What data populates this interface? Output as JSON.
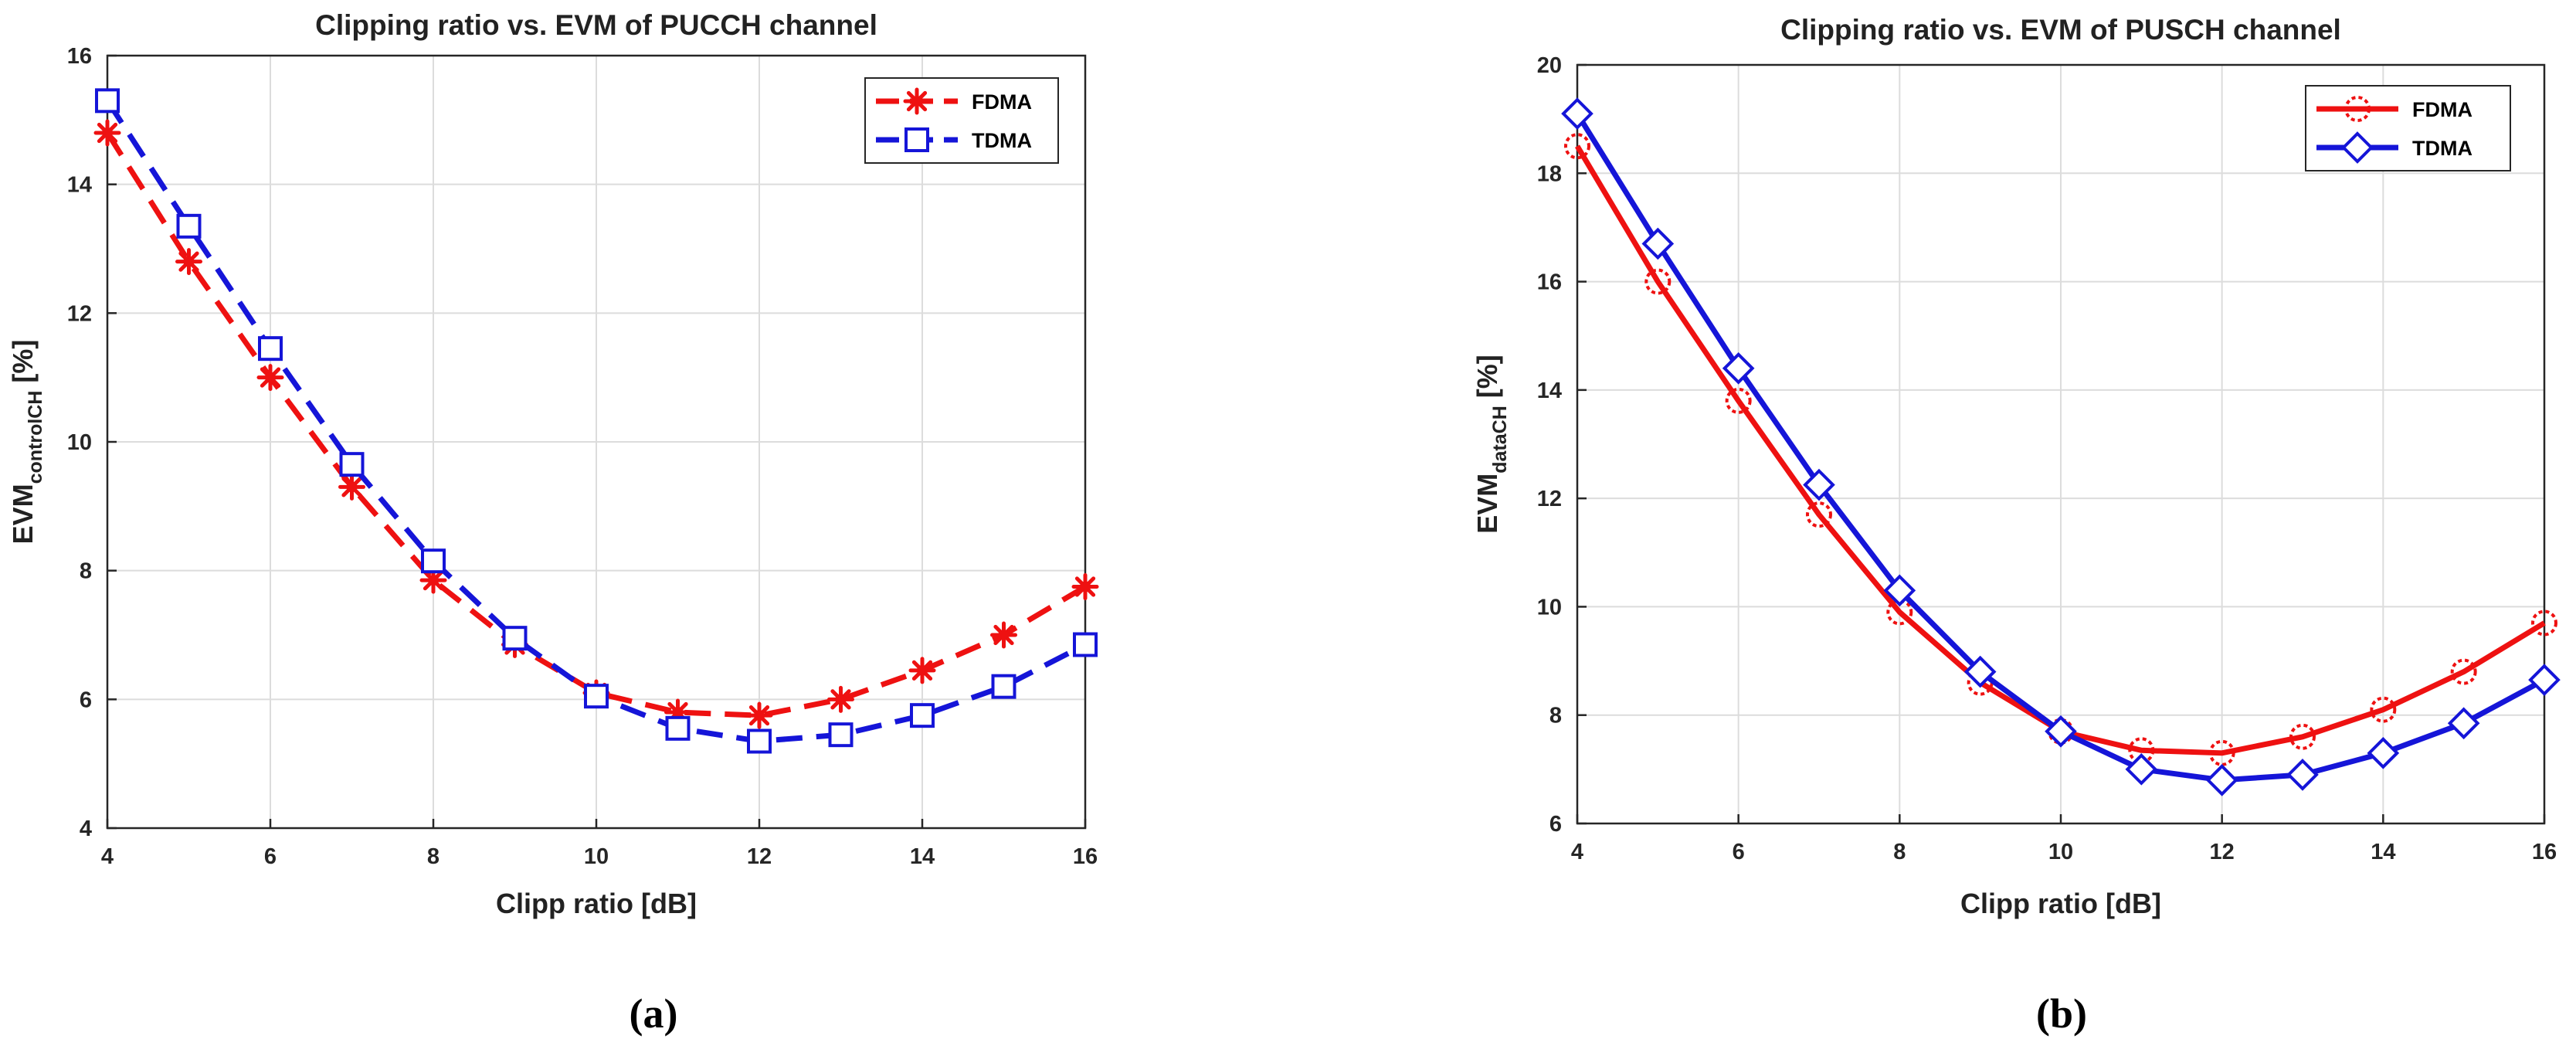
{
  "chart_data": [
    {
      "type": "line",
      "panel_label": "(a)",
      "title": "Clipping ratio vs. EVM of PUCCH channel",
      "xlabel": "Clipp ratio [dB]",
      "ylabel": {
        "main": "EVM",
        "sub": "controlCH",
        "unit": "[%]"
      },
      "xlim": [
        4,
        16
      ],
      "ylim": [
        4,
        16
      ],
      "xticks": [
        4,
        6,
        8,
        10,
        12,
        14,
        16
      ],
      "yticks": [
        4,
        6,
        8,
        10,
        12,
        14,
        16
      ],
      "grid": true,
      "legend_position": "top-right",
      "x": [
        4,
        5,
        6,
        7,
        8,
        9,
        10,
        11,
        12,
        13,
        14,
        15,
        16
      ],
      "series": [
        {
          "name": "FDMA",
          "color": "#ee1111",
          "line_style": "dashed",
          "marker": "asterisk",
          "values": [
            14.8,
            12.8,
            11.0,
            9.3,
            7.85,
            6.85,
            6.1,
            5.8,
            5.75,
            6.0,
            6.45,
            7.0,
            7.75
          ]
        },
        {
          "name": "TDMA",
          "color": "#1515d8",
          "line_style": "dashed",
          "marker": "square",
          "values": [
            15.3,
            13.35,
            11.45,
            9.65,
            8.15,
            6.95,
            6.05,
            5.55,
            5.35,
            5.45,
            5.75,
            6.2,
            6.85
          ]
        }
      ]
    },
    {
      "type": "line",
      "panel_label": "(b)",
      "title": "Clipping ratio vs. EVM of PUSCH channel",
      "xlabel": "Clipp ratio [dB]",
      "ylabel": {
        "main": "EVM",
        "sub": "dataCH",
        "unit": "[%]"
      },
      "xlim": [
        4,
        16
      ],
      "ylim": [
        6,
        20
      ],
      "xticks": [
        4,
        6,
        8,
        10,
        12,
        14,
        16
      ],
      "yticks": [
        6,
        8,
        10,
        12,
        14,
        16,
        18,
        20
      ],
      "grid": true,
      "legend_position": "top-right",
      "x": [
        4,
        5,
        6,
        7,
        8,
        9,
        10,
        11,
        12,
        13,
        14,
        15,
        16
      ],
      "series": [
        {
          "name": "FDMA",
          "color": "#ee1111",
          "line_style": "solid",
          "marker": "dotted-circle",
          "values": [
            18.5,
            16.0,
            13.8,
            11.7,
            9.9,
            8.6,
            7.7,
            7.35,
            7.3,
            7.6,
            8.1,
            8.8,
            9.7
          ]
        },
        {
          "name": "TDMA",
          "color": "#1515d8",
          "line_style": "solid",
          "marker": "diamond",
          "values": [
            19.1,
            16.7,
            14.4,
            12.25,
            10.3,
            8.8,
            7.7,
            7.0,
            6.8,
            6.9,
            7.3,
            7.85,
            8.65
          ]
        }
      ]
    }
  ]
}
